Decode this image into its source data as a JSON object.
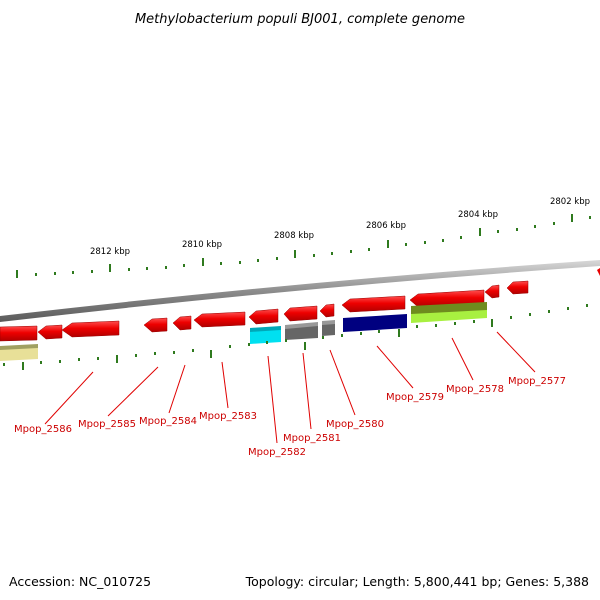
{
  "title": "Methylobacterium populi BJ001, complete genome",
  "footer": {
    "accession": "Accession: NC_010725",
    "summary": "Topology: circular; Length: 5,800,441 bp; Genes: 5,388"
  },
  "colors": {
    "gene_red": "#e80000",
    "backbone": "#8c8c8c",
    "tick_green": "#2f7a1e",
    "label_red": "#cc0000",
    "navy": "#000080",
    "cyan": "#00e0f0",
    "gray_feature": "#666666",
    "olive": "#6e8c1e",
    "lime": "#a8f040",
    "khaki": "#e8e098"
  },
  "kbp_labels": [
    "2812 kbp",
    "2810 kbp",
    "2808 kbp",
    "2806 kbp",
    "2804 kbp",
    "2802 kbp"
  ],
  "gene_labels": [
    "Mpop_2586",
    "Mpop_2585",
    "Mpop_2584",
    "Mpop_2583",
    "Mpop_2582",
    "Mpop_2581",
    "Mpop_2580",
    "Mpop_2579",
    "Mpop_2578",
    "Mpop_2577"
  ]
}
